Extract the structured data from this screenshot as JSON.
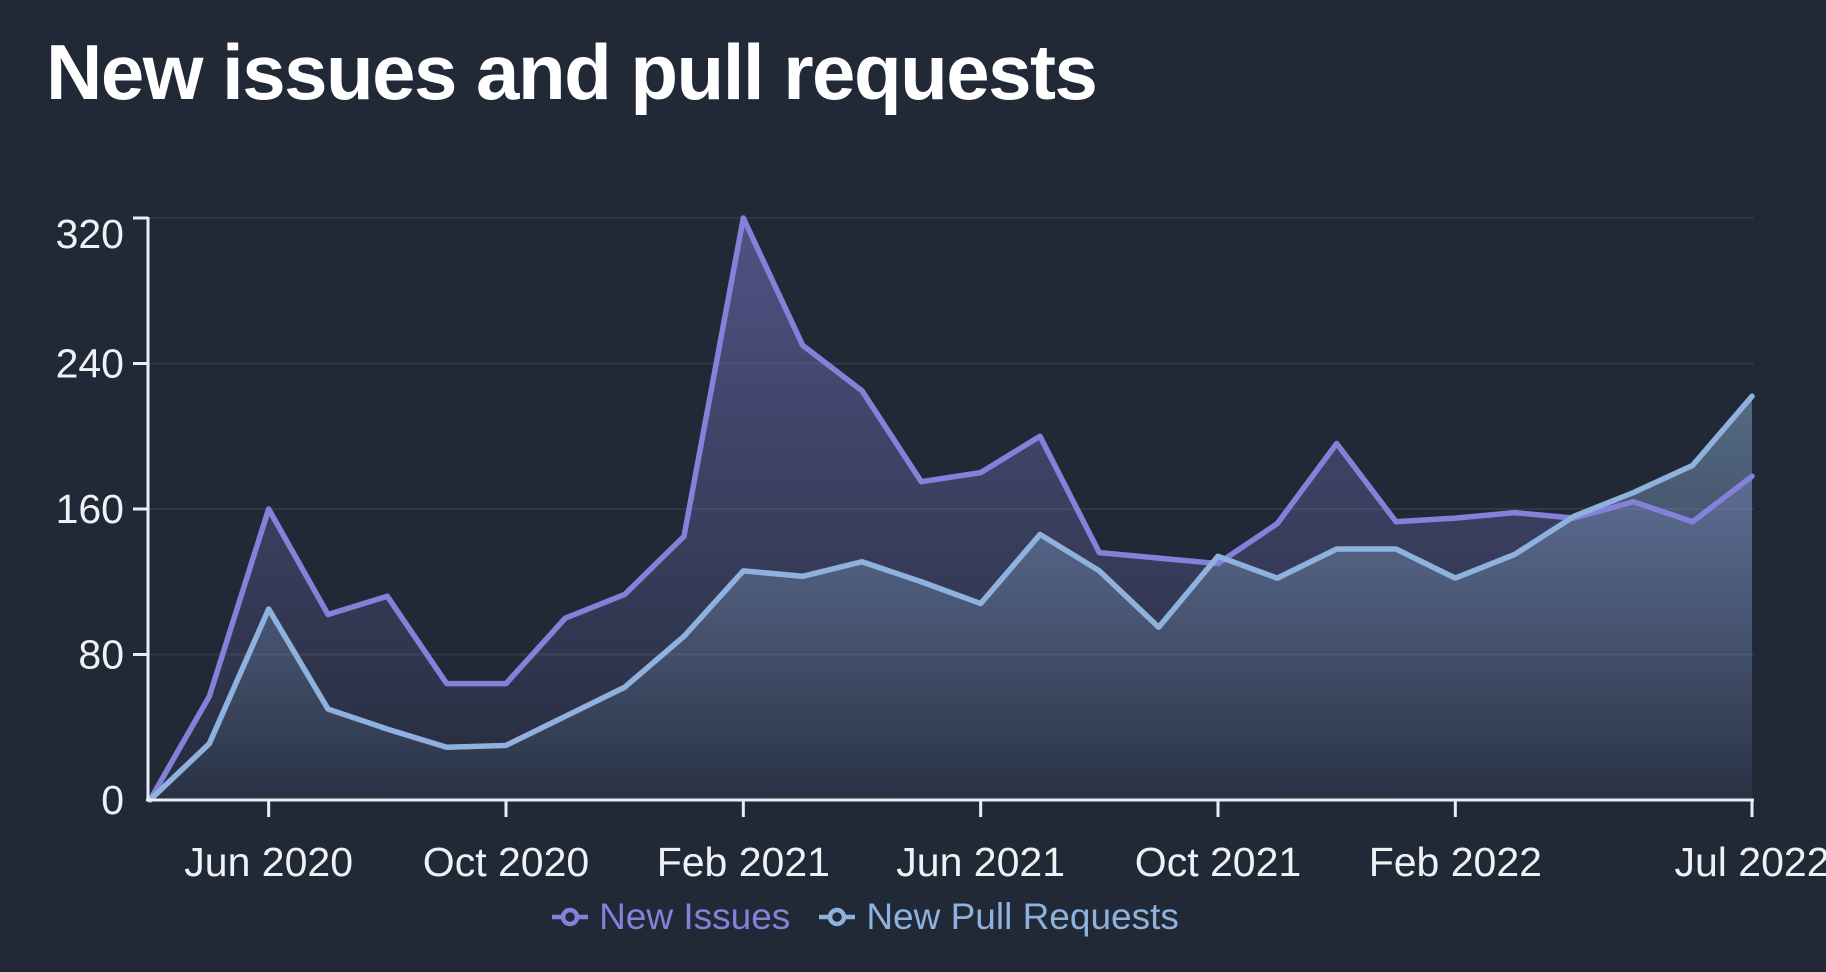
{
  "title": "New issues and pull requests",
  "colors": {
    "background": "#212936",
    "axis": "#eaedf2",
    "tick_label": "#eef1f6",
    "grid": "rgba(233,238,248,0.08)",
    "title_text": "#ffffff"
  },
  "chart_data": {
    "type": "area",
    "title": "New issues and pull requests",
    "x": [
      "Apr 2020",
      "May 2020",
      "Jun 2020",
      "Jul 2020",
      "Aug 2020",
      "Sep 2020",
      "Oct 2020",
      "Nov 2020",
      "Dec 2020",
      "Jan 2021",
      "Feb 2021",
      "Mar 2021",
      "Apr 2021",
      "May 2021",
      "Jun 2021",
      "Jul 2021",
      "Aug 2021",
      "Sep 2021",
      "Oct 2021",
      "Nov 2021",
      "Dec 2021",
      "Jan 2022",
      "Feb 2022",
      "Mar 2022",
      "Apr 2022",
      "May 2022",
      "Jun 2022",
      "Jul 2022"
    ],
    "series": [
      {
        "name": "New Issues",
        "color": "#8381d9",
        "values": [
          0,
          57,
          160,
          102,
          112,
          64,
          64,
          100,
          113,
          145,
          320,
          250,
          225,
          175,
          180,
          200,
          136,
          133,
          130,
          152,
          196,
          153,
          155,
          158,
          155,
          164,
          153,
          178
        ]
      },
      {
        "name": "New Pull Requests",
        "color": "#8eb2dd",
        "values": [
          0,
          31,
          105,
          50,
          39,
          29,
          30,
          46,
          62,
          90,
          126,
          123,
          131,
          120,
          108,
          146,
          126,
          95,
          134,
          122,
          138,
          138,
          122,
          135,
          156,
          169,
          184,
          222
        ]
      }
    ],
    "ylim": [
      0,
      320
    ],
    "yticks": [
      0,
      80,
      160,
      240,
      320
    ],
    "xticks": [
      {
        "index": 2,
        "label": "Jun 2020"
      },
      {
        "index": 6,
        "label": "Oct 2020"
      },
      {
        "index": 10,
        "label": "Feb 2021"
      },
      {
        "index": 14,
        "label": "Jun 2021"
      },
      {
        "index": 18,
        "label": "Oct 2021"
      },
      {
        "index": 22,
        "label": "Feb 2022"
      },
      {
        "index": 27,
        "label": "Jul 2022"
      }
    ],
    "grid": true,
    "legend_position": "bottom"
  },
  "legend": {
    "items": [
      {
        "label": "New Issues"
      },
      {
        "label": "New Pull Requests"
      }
    ]
  }
}
